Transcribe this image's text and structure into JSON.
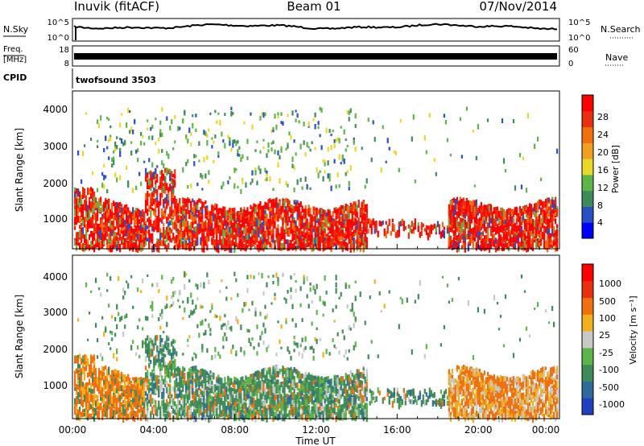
{
  "header": {
    "station": "Inuvik (fitACF)",
    "beam": "Beam 01",
    "date": "07/Nov/2014"
  },
  "noise_panel": {
    "left_label": "N.Sky",
    "left_ticks": [
      "10^5",
      "10^0"
    ],
    "right_ticks": [
      "10^5",
      "10^0"
    ],
    "right_label": "N.Search"
  },
  "freq_panel": {
    "label_line1": "Freq.",
    "label_line2": "[MHz]",
    "left_ticks": [
      "18",
      "8"
    ],
    "right_ticks": [
      "60",
      "0"
    ],
    "right_label": "Nave"
  },
  "cpid": {
    "label": "CPID",
    "value": "twofsound 3503"
  },
  "power_panel": {
    "ylabel": "Slant Range [km]",
    "yticks": [
      "4000",
      "3000",
      "2000",
      "1000"
    ],
    "colorbar_label": "Power [dB]",
    "colorbar_ticks": [
      "28",
      "24",
      "20",
      "16",
      "12",
      "8",
      "4"
    ],
    "colors": [
      "#0000ff",
      "#2a4fc4",
      "#3f8a5a",
      "#5cb548",
      "#e8d82a",
      "#f0a020",
      "#f07010",
      "#e83010",
      "#ff0000"
    ]
  },
  "velocity_panel": {
    "ylabel": "Slant Range [km]",
    "yticks": [
      "4000",
      "3000",
      "2000",
      "1000"
    ],
    "colorbar_label": "Velocity [m s⁻¹]",
    "colorbar_ticks": [
      "1000",
      "500",
      "100",
      "25",
      "-25",
      "-100",
      "-500",
      "-1000"
    ],
    "colors": [
      "#2040c0",
      "#2e6a9a",
      "#3f8a5a",
      "#5cb548",
      "#c8c8c8",
      "#f0b020",
      "#f07010",
      "#e83010",
      "#ff0000"
    ]
  },
  "x_axis": {
    "ticks": [
      "00:00",
      "04:00",
      "08:00",
      "12:00",
      "16:00",
      "20:00",
      "00:00"
    ],
    "label": "Time UT"
  },
  "chart_data": {
    "type": "heatmap",
    "title": "Inuvik (fitACF)   Beam 01   07/Nov/2014",
    "xlabel": "Time UT",
    "ylabel": "Slant Range [km]",
    "x_range_hours": [
      0,
      24
    ],
    "y_range_km": [
      180,
      4500
    ],
    "panels": [
      "Power [dB]",
      "Velocity [m s⁻¹]"
    ],
    "power_scale_dB": [
      0,
      32
    ],
    "velocity_scale_m_s": [
      -1000,
      1000
    ],
    "grid": false,
    "note": "Range-time scatter of radar echoes; strongest band near 500-1500 km"
  }
}
